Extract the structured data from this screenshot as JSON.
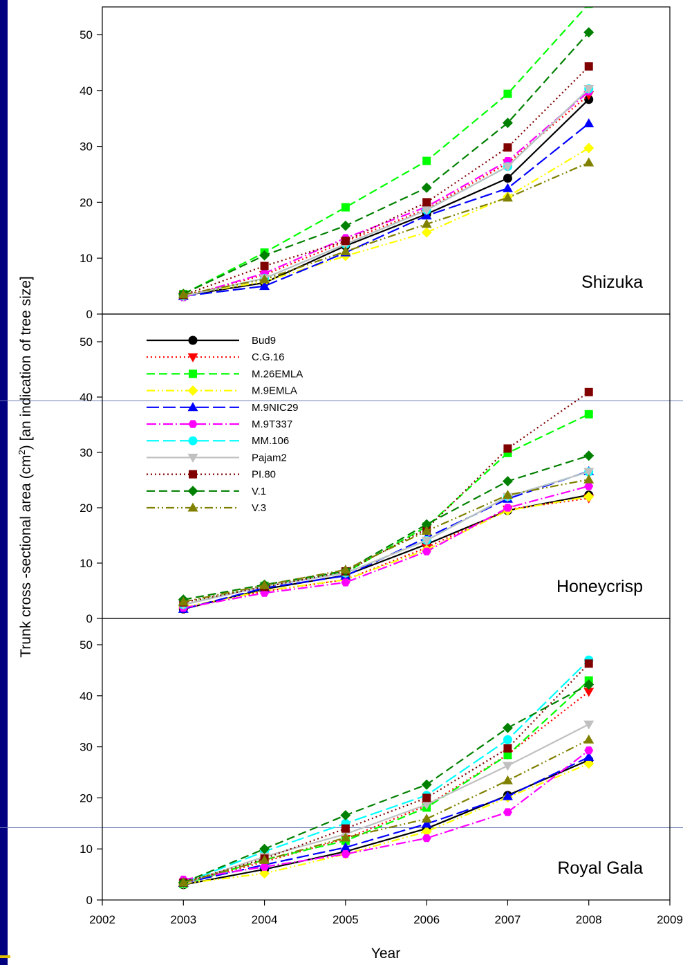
{
  "chart_data": {
    "type": "line",
    "xlabel": "Year",
    "ylabel_parts": {
      "main": "Trunk cross -sectional area (cm",
      "sup": "2",
      "close": ")",
      "bracket": "[an indication of tree size]"
    },
    "x_ticks": [
      "2002",
      "2003",
      "2004",
      "2005",
      "2006",
      "2007",
      "2008",
      "2009"
    ],
    "xlim": [
      2002,
      2009
    ],
    "ylim": [
      0,
      55
    ],
    "y_ticks": [
      "0",
      "10",
      "20",
      "30",
      "40",
      "50"
    ],
    "x": [
      2003,
      2004,
      2005,
      2006,
      2007,
      2008
    ],
    "legend": {
      "panel": "Honeycrisp",
      "placement": "top-left",
      "entries": [
        "Bud9",
        "C.G.16",
        "M.26EMLA",
        "M.9EMLA",
        "M.9NIC29",
        "M.9T337",
        "MM.106",
        "Pajam2",
        "PI.80",
        "V.1",
        "V.3"
      ]
    },
    "series_styles": [
      {
        "name": "Bud9",
        "color": "#000000",
        "marker": "circle",
        "dash": ""
      },
      {
        "name": "C.G.16",
        "color": "#ff0000",
        "marker": "triangle-down",
        "dash": "2,4"
      },
      {
        "name": "M.26EMLA",
        "color": "#00ff00",
        "marker": "square",
        "dash": "12,6"
      },
      {
        "name": "M.9EMLA",
        "color": "#ffff00",
        "marker": "diamond",
        "dash": "12,4,2,4,2,4"
      },
      {
        "name": "M.9NIC29",
        "color": "#0000ff",
        "marker": "triangle-up",
        "dash": "18,6"
      },
      {
        "name": "M.9T337",
        "color": "#ff00ff",
        "marker": "hexagon",
        "dash": "14,4,2,4"
      },
      {
        "name": "MM.106",
        "color": "#00ffff",
        "marker": "circle",
        "dash": "18,6"
      },
      {
        "name": "Pajam2",
        "color": "#c0c0c0",
        "marker": "triangle-down",
        "dash": ""
      },
      {
        "name": "PI.80",
        "color": "#800000",
        "marker": "square",
        "dash": "2,4"
      },
      {
        "name": "V.1",
        "color": "#008000",
        "marker": "diamond",
        "dash": "12,6"
      },
      {
        "name": "V.3",
        "color": "#808000",
        "marker": "triangle-up",
        "dash": "12,4,2,4,2,4"
      }
    ],
    "panels": [
      {
        "label": "Shizuka",
        "series": [
          {
            "name": "Bud9",
            "values": [
              3.3,
              5.6,
              12.2,
              17.9,
              24.3,
              38.4
            ]
          },
          {
            "name": "C.G.16",
            "values": [
              3.2,
              7.0,
              13.0,
              18.8,
              27.0,
              39.2
            ]
          },
          {
            "name": "M.26EMLA",
            "values": [
              3.6,
              11.0,
              19.1,
              27.4,
              39.4,
              55.5
            ]
          },
          {
            "name": "M.9EMLA",
            "values": [
              3.4,
              5.8,
              10.4,
              14.6,
              21.0,
              29.7
            ]
          },
          {
            "name": "M.9NIC29",
            "values": [
              3.2,
              5.0,
              11.0,
              17.6,
              22.5,
              34.1
            ]
          },
          {
            "name": "M.9T337",
            "values": [
              3.0,
              7.3,
              13.6,
              19.2,
              27.4,
              39.8
            ]
          },
          {
            "name": "MM.106",
            "values": [
              3.2,
              6.4,
              12.5,
              18.6,
              26.4,
              40.3
            ]
          },
          {
            "name": "Pajam2",
            "values": [
              3.2,
              6.4,
              12.5,
              18.6,
              26.4,
              40.3
            ]
          },
          {
            "name": "PI.80",
            "values": [
              3.4,
              8.6,
              13.1,
              20.0,
              29.8,
              44.3
            ]
          },
          {
            "name": "V.1",
            "values": [
              3.6,
              10.5,
              15.8,
              22.6,
              34.2,
              50.4
            ]
          },
          {
            "name": "V.3",
            "values": [
              3.5,
              6.2,
              11.2,
              16.1,
              20.8,
              27.1
            ]
          }
        ]
      },
      {
        "label": "Honeycrisp",
        "series": [
          {
            "name": "Bud9",
            "values": [
              1.7,
              5.3,
              7.8,
              13.4,
              19.5,
              22.3
            ]
          },
          {
            "name": "C.G.16",
            "values": [
              1.8,
              4.9,
              7.0,
              12.8,
              19.7,
              21.7
            ]
          },
          {
            "name": "M.26EMLA",
            "values": [
              2.5,
              5.9,
              8.3,
              16.6,
              29.9,
              36.9
            ]
          },
          {
            "name": "M.9EMLA",
            "values": [
              2.0,
              5.0,
              7.0,
              12.4,
              19.5,
              22.0
            ]
          },
          {
            "name": "M.9NIC29",
            "values": [
              1.7,
              5.5,
              7.7,
              14.6,
              21.6,
              26.6
            ]
          },
          {
            "name": "M.9T337",
            "values": [
              1.9,
              4.6,
              6.5,
              12.1,
              20.0,
              23.9
            ]
          },
          {
            "name": "MM.106",
            "values": [
              2.5,
              5.8,
              8.2,
              14.1,
              22.0,
              26.5
            ]
          },
          {
            "name": "Pajam2",
            "values": [
              2.5,
              5.8,
              8.2,
              14.1,
              22.0,
              26.5
            ]
          },
          {
            "name": "PI.80",
            "values": [
              2.9,
              5.7,
              8.5,
              16.2,
              30.7,
              40.9
            ]
          },
          {
            "name": "V.1",
            "values": [
              3.4,
              6.1,
              8.6,
              17.0,
              24.8,
              29.4
            ]
          },
          {
            "name": "V.3",
            "values": [
              3.0,
              6.0,
              8.8,
              15.8,
              22.3,
              25.1
            ]
          }
        ]
      },
      {
        "label": "Royal Gala",
        "series": [
          {
            "name": "Bud9",
            "values": [
              3.0,
              6.0,
              9.5,
              14.0,
              20.5,
              27.4
            ]
          },
          {
            "name": "C.G.16",
            "values": [
              3.2,
              7.5,
              12.0,
              18.5,
              28.5,
              40.8
            ]
          },
          {
            "name": "M.26EMLA",
            "values": [
              3.1,
              7.9,
              11.6,
              18.1,
              28.4,
              43.0
            ]
          },
          {
            "name": "M.9EMLA",
            "values": [
              3.2,
              5.2,
              9.0,
              13.4,
              20.1,
              26.7
            ]
          },
          {
            "name": "M.9NIC29",
            "values": [
              3.3,
              6.9,
              10.3,
              14.9,
              20.3,
              28.0
            ]
          },
          {
            "name": "M.9T337",
            "values": [
              4.0,
              6.5,
              9.0,
              12.1,
              17.2,
              29.3
            ]
          },
          {
            "name": "MM.106",
            "values": [
              3.3,
              9.5,
              15.0,
              20.5,
              31.4,
              47.0
            ]
          },
          {
            "name": "Pajam2",
            "values": [
              3.2,
              8.5,
              12.9,
              18.7,
              26.3,
              34.4
            ]
          },
          {
            "name": "PI.80",
            "values": [
              3.4,
              8.1,
              14.0,
              20.0,
              29.7,
              46.3
            ]
          },
          {
            "name": "V.1",
            "values": [
              3.4,
              10.0,
              16.6,
              22.6,
              33.7,
              42.2
            ]
          },
          {
            "name": "V.3",
            "values": [
              3.4,
              7.8,
              12.2,
              15.9,
              23.4,
              31.4
            ]
          }
        ]
      }
    ]
  }
}
